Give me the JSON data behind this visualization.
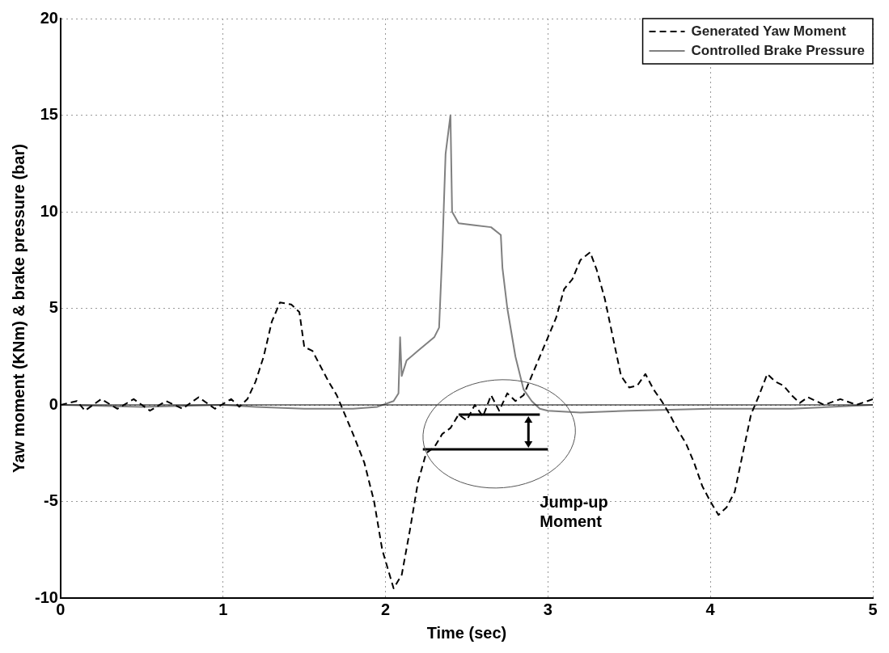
{
  "chart_data": {
    "type": "line",
    "xlabel": "Time (sec)",
    "ylabel": "Yaw moment (KNm) & brake pressure (bar)",
    "xlim": [
      0,
      5
    ],
    "xticks": [
      0,
      1,
      2,
      3,
      4,
      5
    ],
    "ylim": [
      -10,
      20
    ],
    "yticks": [
      -10,
      -5,
      0,
      5,
      10,
      15,
      20
    ],
    "grid": true,
    "legend": "top right",
    "marker": "none",
    "ref_lines": [
      {
        "axis": "y",
        "value": 0,
        "color": "#000000",
        "line_style": "solid"
      }
    ],
    "annotations": [
      "Jump-up Moment"
    ],
    "series": [
      {
        "name": "Generated Yaw Moment",
        "color": "#000000",
        "line_style": "dashed",
        "x": [
          0,
          0.1,
          0.15,
          0.25,
          0.35,
          0.45,
          0.55,
          0.65,
          0.75,
          0.85,
          0.95,
          1.05,
          1.1,
          1.15,
          1.2,
          1.25,
          1.3,
          1.35,
          1.42,
          1.47,
          1.5,
          1.55,
          1.6,
          1.65,
          1.7,
          1.75,
          1.8,
          1.87,
          1.93,
          1.98,
          2.05,
          2.1,
          2.15,
          2.2,
          2.25,
          2.3,
          2.35,
          2.4,
          2.45,
          2.5,
          2.55,
          2.6,
          2.65,
          2.7,
          2.75,
          2.8,
          2.85,
          2.9,
          2.95,
          3.0,
          3.05,
          3.1,
          3.15,
          3.2,
          3.26,
          3.3,
          3.35,
          3.4,
          3.45,
          3.5,
          3.55,
          3.6,
          3.65,
          3.7,
          3.75,
          3.8,
          3.85,
          3.9,
          3.95,
          4.0,
          4.05,
          4.1,
          4.15,
          4.2,
          4.25,
          4.3,
          4.35,
          4.4,
          4.45,
          4.5,
          4.55,
          4.6,
          4.7,
          4.8,
          4.9,
          5.0
        ],
        "values": [
          0,
          0.2,
          -0.3,
          0.3,
          -0.2,
          0.3,
          -0.3,
          0.2,
          -0.2,
          0.4,
          -0.2,
          0.3,
          -0.1,
          0.3,
          1.2,
          2.5,
          4.3,
          5.3,
          5.2,
          4.8,
          3.0,
          2.8,
          2.0,
          1.2,
          0.5,
          -0.5,
          -1.5,
          -3.0,
          -5,
          -7.5,
          -9.5,
          -8.8,
          -6.5,
          -4,
          -2.5,
          -2.2,
          -1.5,
          -1.2,
          -0.5,
          -0.8,
          0,
          -0.6,
          0.5,
          -0.3,
          0.6,
          0.2,
          0.5,
          1.5,
          2.5,
          3.5,
          4.5,
          6,
          6.5,
          7.5,
          7.9,
          7,
          5.5,
          3.5,
          1.5,
          0.9,
          1.0,
          1.6,
          0.8,
          0.2,
          -0.5,
          -1.3,
          -2,
          -3,
          -4.2,
          -5,
          -5.7,
          -5.3,
          -4.5,
          -2.5,
          -0.5,
          0.5,
          1.6,
          1.2,
          1.0,
          0.5,
          0.1,
          0.4,
          0,
          0.3,
          0,
          0.3
        ]
      },
      {
        "color": "#000000",
        "line_style": "solid",
        "x": [
          2.45,
          2.95
        ],
        "values": [
          -0.5,
          -0.5
        ]
      },
      {
        "color": "#000000",
        "line_style": "solid",
        "x": [
          2.23,
          3.0
        ],
        "values": [
          -2.3,
          -2.3
        ]
      },
      {
        "name": "Controlled Brake Pressure",
        "color": "#808080",
        "line_style": "solid",
        "x": [
          0,
          0.5,
          1.0,
          1.2,
          1.5,
          1.8,
          1.95,
          2.05,
          2.08,
          2.09,
          2.1,
          2.13,
          2.2,
          2.3,
          2.33,
          2.35,
          2.37,
          2.4,
          2.41,
          2.45,
          2.55,
          2.65,
          2.71,
          2.72,
          2.75,
          2.8,
          2.85,
          2.9,
          2.95,
          3.0,
          3.2,
          3.5,
          4.0,
          4.5,
          5.0
        ],
        "values": [
          0,
          -0.1,
          0,
          -0.1,
          -0.2,
          -0.2,
          -0.1,
          0.2,
          0.6,
          3.5,
          1.5,
          2.3,
          2.8,
          3.5,
          4,
          8,
          13,
          15,
          10,
          9.4,
          9.3,
          9.2,
          8.8,
          7.1,
          5,
          2.5,
          0.8,
          0.2,
          -0.2,
          -0.3,
          -0.4,
          -0.3,
          -0.2,
          -0.2,
          0
        ]
      }
    ]
  }
}
